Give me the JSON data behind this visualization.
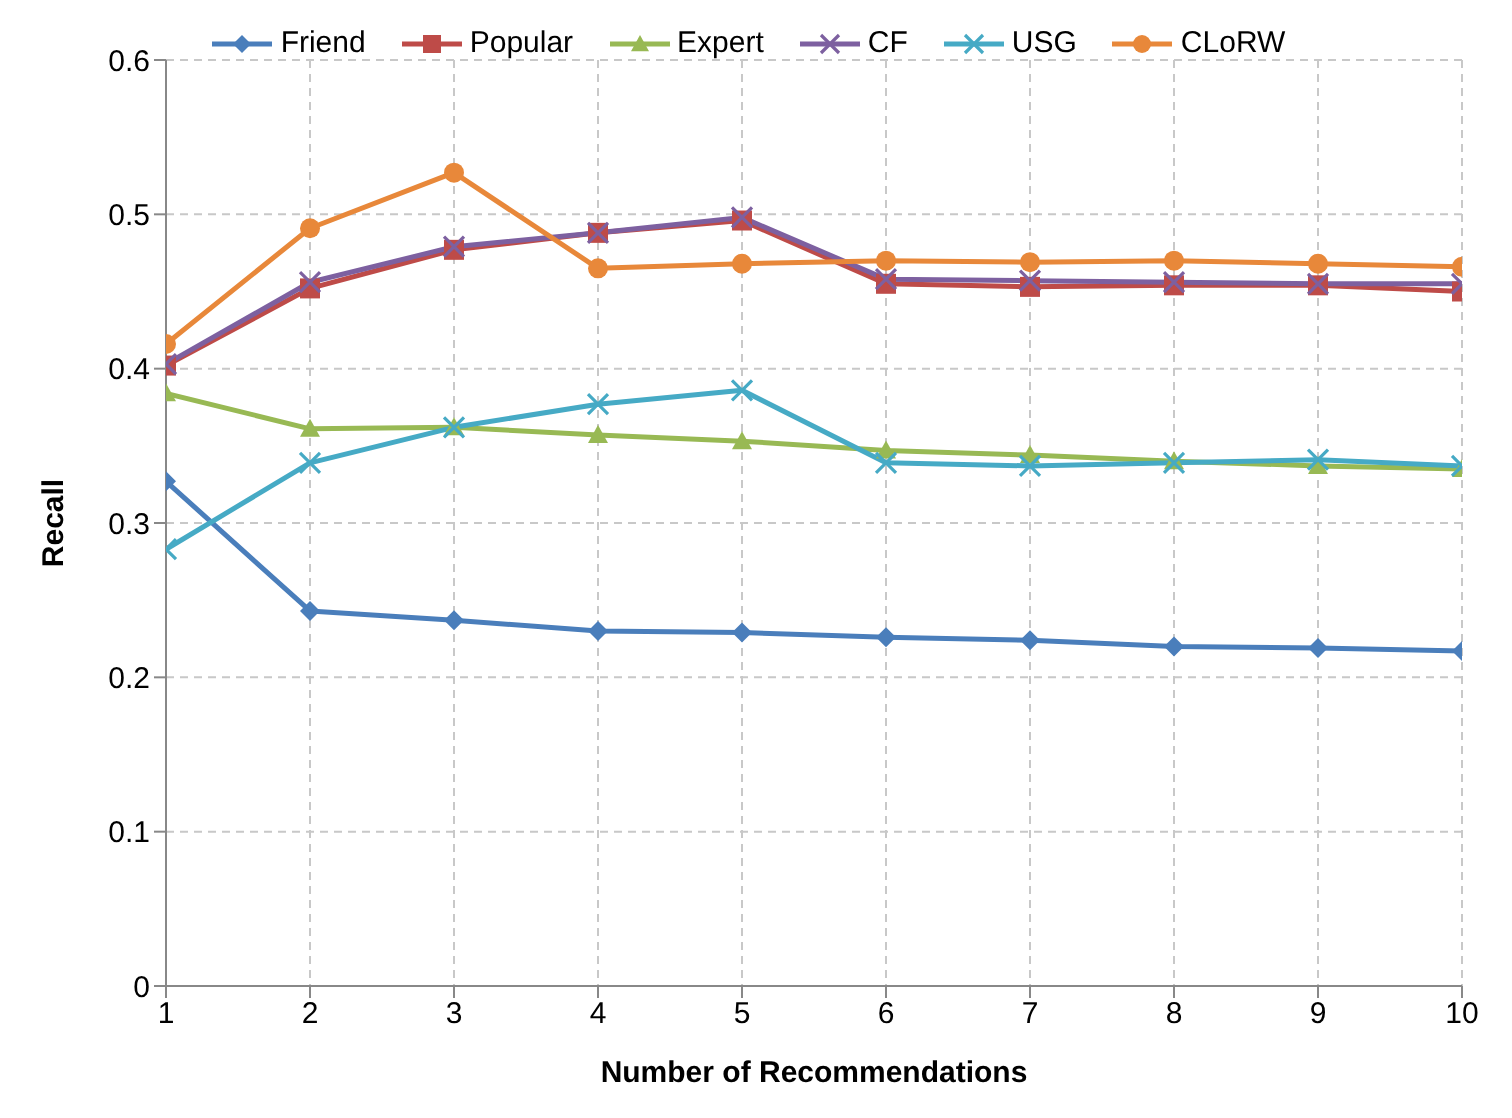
{
  "chart_data": {
    "type": "line",
    "xlabel": "Number of Recommendations",
    "ylabel": "Recall",
    "x": [
      1,
      2,
      3,
      4,
      5,
      6,
      7,
      8,
      9,
      10
    ],
    "series": [
      {
        "name": "Friend",
        "color": "#4a7ebb",
        "marker": "diamond",
        "values": [
          0.327,
          0.243,
          0.237,
          0.23,
          0.229,
          0.226,
          0.224,
          0.22,
          0.219,
          0.217
        ]
      },
      {
        "name": "Popular",
        "color": "#be4b48",
        "marker": "square",
        "values": [
          0.402,
          0.452,
          0.477,
          0.488,
          0.496,
          0.455,
          0.453,
          0.454,
          0.454,
          0.45
        ]
      },
      {
        "name": "Expert",
        "color": "#98b954",
        "marker": "triangle",
        "values": [
          0.384,
          0.361,
          0.362,
          0.357,
          0.353,
          0.347,
          0.344,
          0.34,
          0.337,
          0.335
        ]
      },
      {
        "name": "CF",
        "color": "#7d60a0",
        "marker": "cross",
        "values": [
          0.403,
          0.456,
          0.479,
          0.488,
          0.498,
          0.458,
          0.457,
          0.456,
          0.455,
          0.455
        ]
      },
      {
        "name": "USG",
        "color": "#46aac5",
        "marker": "cross",
        "values": [
          0.283,
          0.339,
          0.362,
          0.377,
          0.386,
          0.339,
          0.337,
          0.339,
          0.341,
          0.337
        ]
      },
      {
        "name": "CLoRW",
        "color": "#e8883a",
        "marker": "circle",
        "values": [
          0.416,
          0.491,
          0.527,
          0.465,
          0.468,
          0.47,
          0.469,
          0.47,
          0.468,
          0.466
        ]
      }
    ],
    "xlim": [
      1,
      10
    ],
    "xticks": [
      1,
      2,
      3,
      4,
      5,
      6,
      7,
      8,
      9,
      10
    ],
    "ylim": [
      0,
      0.6
    ],
    "yticks": [
      0,
      0.1,
      0.2,
      0.3,
      0.4,
      0.5,
      0.6
    ],
    "grid": true,
    "legend": "top",
    "line_style": "solid"
  }
}
